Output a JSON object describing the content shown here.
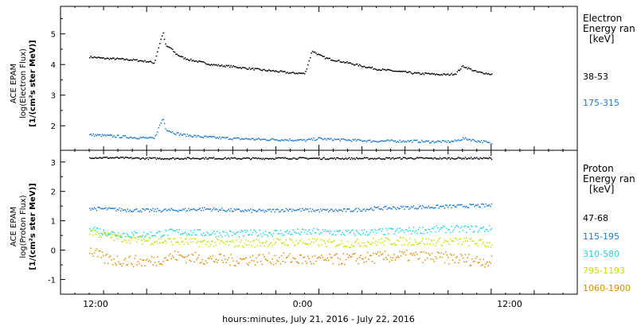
{
  "x_axis": {
    "label": "hours:minutes, July 21, 2016 - July 22, 2016",
    "tick_labels": [
      "12:00",
      "0:00",
      "12:00"
    ]
  },
  "colors": {
    "black": "#000000",
    "blue": "#1f7ad1",
    "cyan": "#22d8d8",
    "yellow": "#c8e000",
    "orange": "#e08a00"
  },
  "chart_data": [
    {
      "type": "scatter",
      "panel": "electron",
      "ylabel": [
        "ACE EPAM",
        "log(Electron Flux)",
        "[1/(cm²s ster MeV)]"
      ],
      "ylim": [
        1.2,
        5.9
      ],
      "y_ticks": [
        2,
        3,
        4,
        5
      ],
      "x_range_hours": [
        6,
        42
      ],
      "legend_title": [
        "Electron",
        "Energy ran",
        "[keV]"
      ],
      "series": [
        {
          "name": "38-53",
          "color": "#000000",
          "x": [
            8,
            9,
            10,
            11,
            12,
            12.5,
            13.1,
            13.3,
            13.6,
            14,
            14.5,
            15,
            15.5,
            16,
            16.5,
            17,
            17.5,
            18,
            18.5,
            19,
            19.5,
            20,
            20.5,
            21,
            21.5,
            22,
            22.5,
            23,
            23.5,
            24,
            24.5,
            25,
            25.5,
            26,
            26.5,
            27,
            27.5,
            28,
            28.5,
            29,
            29.5,
            30,
            30.5,
            31,
            31.5,
            32,
            32.5,
            33,
            33.5,
            34,
            34.5,
            35,
            35.5,
            36
          ],
          "y": [
            4.25,
            4.2,
            4.18,
            4.15,
            4.1,
            4.05,
            5.05,
            4.6,
            4.55,
            4.35,
            4.22,
            4.15,
            4.1,
            4.05,
            4.0,
            3.97,
            3.95,
            3.93,
            3.9,
            3.87,
            3.85,
            3.82,
            3.8,
            3.78,
            3.75,
            3.72,
            3.72,
            3.7,
            4.45,
            4.3,
            4.2,
            4.15,
            4.1,
            4.05,
            4.0,
            3.95,
            3.9,
            3.85,
            3.82,
            3.8,
            3.77,
            3.75,
            3.72,
            3.7,
            3.7,
            3.68,
            3.67,
            3.67,
            3.7,
            3.95,
            3.85,
            3.75,
            3.72,
            3.68
          ]
        },
        {
          "name": "175-315",
          "color": "#1f7ad1",
          "x": [
            8,
            9,
            10,
            11,
            12,
            12.5,
            13.1,
            13.3,
            13.6,
            14,
            14.5,
            15,
            15.5,
            16,
            16.5,
            17,
            17.5,
            18,
            18.5,
            19,
            19.5,
            20,
            20.5,
            21,
            21.5,
            22,
            22.5,
            23,
            23.5,
            24,
            24.5,
            25,
            25.5,
            26,
            26.5,
            27,
            27.5,
            28,
            28.5,
            29,
            29.5,
            30,
            30.5,
            31,
            31.5,
            32,
            32.5,
            33,
            33.5,
            34,
            34.5,
            35,
            35.5,
            36
          ],
          "y": [
            1.7,
            1.68,
            1.65,
            1.62,
            1.6,
            1.58,
            2.25,
            1.9,
            1.82,
            1.75,
            1.7,
            1.68,
            1.65,
            1.63,
            1.62,
            1.6,
            1.6,
            1.58,
            1.57,
            1.57,
            1.56,
            1.55,
            1.55,
            1.55,
            1.54,
            1.54,
            1.53,
            1.52,
            1.55,
            1.58,
            1.56,
            1.55,
            1.54,
            1.53,
            1.52,
            1.52,
            1.5,
            1.5,
            1.5,
            1.5,
            1.5,
            1.5,
            1.5,
            1.49,
            1.48,
            1.48,
            1.48,
            1.48,
            1.5,
            1.58,
            1.55,
            1.5,
            1.48,
            1.4
          ]
        }
      ]
    },
    {
      "type": "scatter",
      "panel": "proton",
      "ylabel": [
        "ACE EPAM",
        "log(Proton Flux)",
        "[1/(cm²s ster MeV)]"
      ],
      "ylim": [
        -1.5,
        3.4
      ],
      "y_ticks": [
        -1,
        0,
        1,
        2,
        3
      ],
      "x_range_hours": [
        6,
        42
      ],
      "legend_title": [
        "Proton",
        "Energy ran",
        "[keV]"
      ],
      "series": [
        {
          "name": "47-68",
          "color": "#000000",
          "x": [
            8,
            10,
            12,
            14,
            16,
            18,
            20,
            22,
            24,
            26,
            28,
            30,
            32,
            34,
            36
          ],
          "y": [
            3.15,
            3.14,
            3.12,
            3.12,
            3.13,
            3.12,
            3.12,
            3.13,
            3.12,
            3.12,
            3.12,
            3.13,
            3.12,
            3.13,
            3.12
          ]
        },
        {
          "name": "115-195",
          "color": "#1f7ad1",
          "x": [
            8,
            10,
            12,
            14,
            16,
            18,
            20,
            22,
            24,
            26,
            28,
            30,
            32,
            34,
            36
          ],
          "y": [
            1.42,
            1.38,
            1.35,
            1.36,
            1.4,
            1.35,
            1.33,
            1.38,
            1.35,
            1.35,
            1.42,
            1.45,
            1.47,
            1.5,
            1.52
          ]
        },
        {
          "name": "310-580",
          "color": "#22d8d8",
          "x": [
            8,
            9,
            10,
            12,
            14,
            16,
            18,
            20,
            22,
            24,
            26,
            28,
            30,
            32,
            34,
            36
          ],
          "y": [
            0.8,
            0.6,
            0.55,
            0.52,
            0.62,
            0.58,
            0.55,
            0.58,
            0.6,
            0.62,
            0.58,
            0.62,
            0.65,
            0.7,
            0.72,
            0.72
          ]
        },
        {
          "name": "795-1193",
          "color": "#c8e000",
          "x": [
            8,
            9,
            10,
            12,
            14,
            16,
            18,
            20,
            22,
            24,
            26,
            28,
            30,
            32,
            34,
            36
          ],
          "y": [
            0.65,
            0.5,
            0.42,
            0.32,
            0.3,
            0.25,
            0.22,
            0.25,
            0.28,
            0.25,
            0.22,
            0.28,
            0.3,
            0.28,
            0.3,
            0.2
          ]
        },
        {
          "name": "1060-1900",
          "color": "#e08a00",
          "x": [
            8,
            9,
            10,
            12,
            14,
            16,
            18,
            20,
            22,
            24,
            26,
            28,
            30,
            32,
            34,
            36
          ],
          "y": [
            0.0,
            -0.3,
            -0.35,
            -0.4,
            -0.2,
            -0.3,
            -0.35,
            -0.3,
            -0.3,
            -0.35,
            -0.3,
            -0.25,
            -0.2,
            -0.25,
            -0.3,
            -0.4
          ]
        }
      ]
    }
  ]
}
